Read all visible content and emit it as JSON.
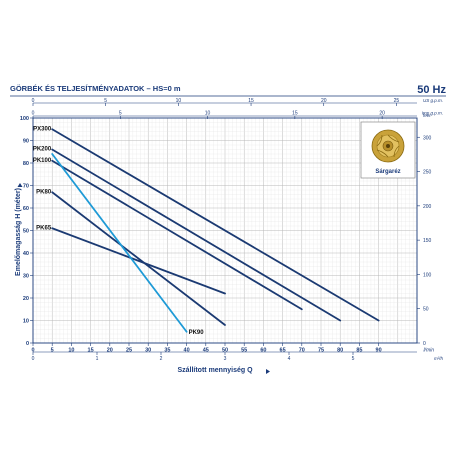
{
  "header": {
    "title": "GÖRBÉK ÉS TELJESÍTMÉNYADATOK  –  HS=0 m",
    "frequency": "50 Hz"
  },
  "inset": {
    "label": "Sárgaréz"
  },
  "chart_data": {
    "type": "line",
    "xlabel": "Szállított mennyiség  Q",
    "ylabel": "Emelőmagasság  H  (méter)",
    "xlim": [
      0,
      100
    ],
    "ylim": [
      0,
      100
    ],
    "x_ticks": [
      "0",
      "5",
      "10",
      "15",
      "20",
      "25",
      "30",
      "35",
      "40",
      "45",
      "50",
      "55",
      "60",
      "65",
      "70",
      "75",
      "80",
      "85",
      "90"
    ],
    "x_unit": "l/min",
    "y_ticks": [
      "0",
      "10",
      "20",
      "30",
      "40",
      "50",
      "60",
      "70",
      "80",
      "90",
      "100"
    ],
    "top_axis_us": {
      "unit": "US g.p.m.",
      "ticks": [
        "0",
        "5",
        "10",
        "15",
        "20",
        "25"
      ],
      "per_lmin": 0.26417
    },
    "top_axis_imp": {
      "unit": "Imp g.p.m.",
      "ticks": [
        "0",
        "5",
        "10",
        "15",
        "20"
      ],
      "per_lmin": 0.21997
    },
    "bottom_axis_m3h": {
      "unit": "m³/h",
      "ticks": [
        "0",
        "1",
        "2",
        "3",
        "4",
        "5"
      ],
      "per_lmin": 0.06
    },
    "right_axis_feet": {
      "unit": "feet",
      "ticks": [
        "0",
        "50",
        "100",
        "150",
        "200",
        "250",
        "300"
      ],
      "per_meter": 3.2808
    },
    "series": [
      {
        "name": "PX300",
        "x": [
          5,
          90
        ],
        "y": [
          95,
          10
        ],
        "color": "#1b3a72"
      },
      {
        "name": "PK200",
        "x": [
          5,
          80
        ],
        "y": [
          86,
          10
        ],
        "color": "#1b3a72"
      },
      {
        "name": "PK100",
        "x": [
          5,
          70
        ],
        "y": [
          81,
          15
        ],
        "color": "#1b3a72"
      },
      {
        "name": "PK80",
        "x": [
          5,
          50
        ],
        "y": [
          67,
          8
        ],
        "color": "#1b3a72"
      },
      {
        "name": "PK65",
        "x": [
          5,
          50
        ],
        "y": [
          51,
          22
        ],
        "color": "#1b3a72"
      },
      {
        "name": "PK90",
        "x": [
          5,
          40
        ],
        "y": [
          84,
          5
        ],
        "color": "#1e9ad6"
      }
    ]
  }
}
